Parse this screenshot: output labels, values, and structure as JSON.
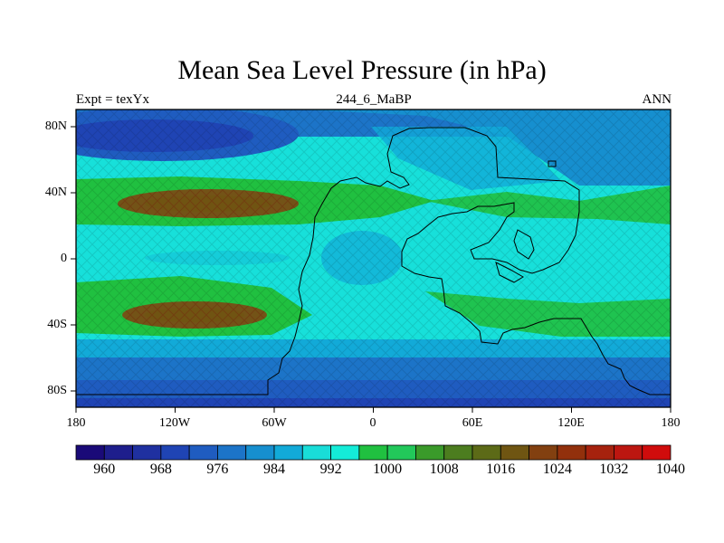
{
  "title": "Mean Sea Level Pressure (in hPa)",
  "subtitle_left": "Expt = texYx",
  "subtitle_center": "244_6_MaBP",
  "subtitle_right": "ANN",
  "lat_ticks": [
    "80N",
    "40N",
    "0",
    "40S",
    "80S"
  ],
  "lon_ticks": [
    "180",
    "120W",
    "60W",
    "0",
    "60E",
    "120E",
    "180"
  ],
  "colorbar": {
    "labels": [
      "960",
      "968",
      "976",
      "984",
      "992",
      "1000",
      "1008",
      "1016",
      "1024",
      "1032",
      "1040"
    ],
    "colors": [
      "#1a0a78",
      "#1e1e8c",
      "#1f30a0",
      "#1f44b4",
      "#1f5cc0",
      "#1c74c8",
      "#168fcf",
      "#12aad8",
      "#19ddd8",
      "#14ecd8",
      "#20c040",
      "#22c85a",
      "#3a9a2a",
      "#4c7d1f",
      "#5c6a17",
      "#6f5512",
      "#824010",
      "#92300c",
      "#a6220e",
      "#bc1610",
      "#d00c0c"
    ]
  }
}
